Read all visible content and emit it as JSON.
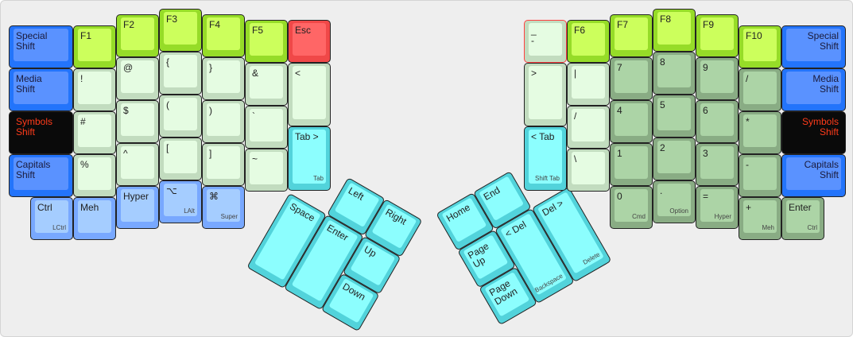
{
  "palette": {
    "blue": {
      "outer": "#2374fb",
      "inner": "#5a92ff",
      "text": "#1a1a3a"
    },
    "black": {
      "outer": "#0a0a0a",
      "inner": "#0a0a0a",
      "text": "#ff3b1a"
    },
    "green": {
      "outer": "#96dc28",
      "inner": "#ccff5c",
      "text": "#222222"
    },
    "red": {
      "outer": "#f04848",
      "inner": "#ff6666",
      "text": "#222222"
    },
    "light": {
      "outer": "#c2dcbf",
      "inner": "#e5fce2",
      "text": "#222222"
    },
    "lightblue": {
      "outer": "#78a8ff",
      "inner": "#a5cdff",
      "text": "#222222"
    },
    "cyan": {
      "outer": "#52d3db",
      "inner": "#8cfefe",
      "text": "#222222"
    },
    "numgreen": {
      "outer": "#89ac84",
      "inner": "#acd4a6",
      "text": "#222222"
    }
  },
  "left": {
    "keys": [
      {
        "label": "Special\nShift",
        "style": "blue"
      },
      {
        "label": "Media\nShift",
        "style": "blue"
      },
      {
        "label": "Symbols\nShift",
        "style": "black"
      },
      {
        "label": "Capitals\nShift",
        "style": "blue"
      },
      {
        "label": "Ctrl",
        "sub": "LCtrl",
        "style": "lightblue"
      },
      {
        "label": "F1",
        "style": "green"
      },
      {
        "label": "!",
        "style": "light"
      },
      {
        "label": "#",
        "style": "light"
      },
      {
        "label": "%",
        "style": "light"
      },
      {
        "label": "Meh",
        "style": "lightblue"
      },
      {
        "label": "F2",
        "style": "green"
      },
      {
        "label": "@",
        "style": "light"
      },
      {
        "label": "$",
        "style": "light"
      },
      {
        "label": "^",
        "style": "light"
      },
      {
        "label": "Hyper",
        "style": "lightblue"
      },
      {
        "label": "F3",
        "style": "green"
      },
      {
        "label": "{",
        "style": "light"
      },
      {
        "label": "(",
        "style": "light"
      },
      {
        "label": "[",
        "style": "light"
      },
      {
        "label": "⌥",
        "sub": "LAlt",
        "style": "lightblue"
      },
      {
        "label": "F4",
        "style": "green"
      },
      {
        "label": "}",
        "style": "light"
      },
      {
        "label": ")",
        "style": "light"
      },
      {
        "label": "]",
        "style": "light"
      },
      {
        "label": "⌘",
        "sub": "Super",
        "style": "lightblue"
      },
      {
        "label": "F5",
        "style": "green"
      },
      {
        "label": "&",
        "style": "light"
      },
      {
        "label": "`",
        "style": "light"
      },
      {
        "label": "~",
        "style": "light"
      },
      {
        "label": "Esc",
        "style": "red"
      },
      {
        "label": "<",
        "style": "light"
      },
      {
        "label": "Tab >",
        "sub": "Tab",
        "style": "cyan"
      }
    ],
    "thumb": [
      {
        "label": "Left",
        "style": "cyan"
      },
      {
        "label": "Right",
        "style": "cyan"
      },
      {
        "label": "Space",
        "style": "cyan"
      },
      {
        "label": "Enter",
        "style": "cyan"
      },
      {
        "label": "Up",
        "style": "cyan"
      },
      {
        "label": "Down",
        "style": "cyan"
      }
    ]
  },
  "right": {
    "keys": [
      {
        "label": "_\n-",
        "style": "light",
        "highlight": "#ff4040"
      },
      {
        "label": ">",
        "style": "light"
      },
      {
        "label": "< Tab",
        "sub": "Shift Tab",
        "style": "cyan"
      },
      {
        "label": "F6",
        "style": "green"
      },
      {
        "label": "|",
        "style": "light"
      },
      {
        "label": "/",
        "style": "light"
      },
      {
        "label": "\\",
        "style": "light"
      },
      {
        "label": "F7",
        "style": "green"
      },
      {
        "label": "7",
        "style": "numgreen"
      },
      {
        "label": "4",
        "style": "numgreen"
      },
      {
        "label": "1",
        "style": "numgreen"
      },
      {
        "label": "0",
        "sub": "Cmd",
        "style": "numgreen"
      },
      {
        "label": "F8",
        "style": "green"
      },
      {
        "label": "8",
        "style": "numgreen"
      },
      {
        "label": "5",
        "style": "numgreen"
      },
      {
        "label": "2",
        "style": "numgreen"
      },
      {
        "label": ".",
        "sub": "Option",
        "style": "numgreen"
      },
      {
        "label": "F9",
        "style": "green"
      },
      {
        "label": "9",
        "style": "numgreen"
      },
      {
        "label": "6",
        "style": "numgreen"
      },
      {
        "label": "3",
        "style": "numgreen"
      },
      {
        "label": "=",
        "sub": "Hyper",
        "style": "numgreen"
      },
      {
        "label": "F10",
        "style": "green"
      },
      {
        "label": "/",
        "style": "numgreen"
      },
      {
        "label": "*",
        "style": "numgreen"
      },
      {
        "label": "-",
        "style": "numgreen"
      },
      {
        "label": "+",
        "sub": "Meh",
        "style": "numgreen"
      },
      {
        "label": "Special\nShift",
        "style": "blue"
      },
      {
        "label": "Media\nShift",
        "style": "blue"
      },
      {
        "label": "Symbols\nShift",
        "style": "black"
      },
      {
        "label": "Capitals\nShift",
        "style": "blue"
      },
      {
        "label": "Enter",
        "sub": "Ctrl",
        "style": "numgreen"
      }
    ],
    "thumb": [
      {
        "label": "Home",
        "style": "cyan"
      },
      {
        "label": "End",
        "style": "cyan"
      },
      {
        "label": "Page\nUp",
        "style": "cyan"
      },
      {
        "label": "Page\nDown",
        "style": "cyan"
      },
      {
        "label": "< Del",
        "sub": "Backspace",
        "style": "cyan"
      },
      {
        "label": "Del >",
        "sub": "Delete",
        "style": "cyan"
      }
    ]
  }
}
